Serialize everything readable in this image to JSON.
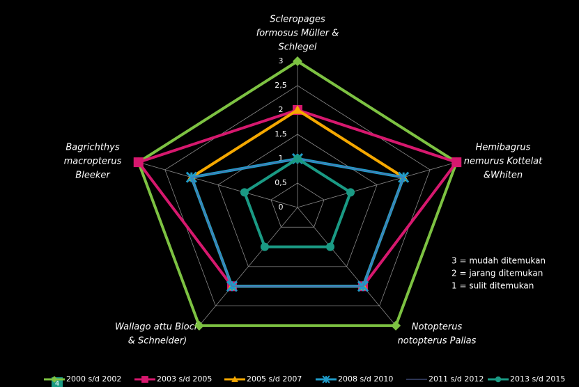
{
  "chart_data": {
    "type": "radar",
    "categories": [
      [
        "Scleropages",
        "formosus Müller &",
        "Schlegel"
      ],
      [
        "Hemibagrus",
        "nemurus Kottelat",
        "&Whiten"
      ],
      [
        "Notopterus",
        "notopterus Pallas"
      ],
      [
        "Wallago attu Bloch",
        "& Schneider)"
      ],
      [
        "Bagrichthys",
        "macropterus",
        "Bleeker"
      ]
    ],
    "series": [
      {
        "name": "2000 s/d 2002",
        "color": "#7dc242",
        "marker": "diamond",
        "values": [
          3,
          3,
          3,
          3,
          3
        ]
      },
      {
        "name": "2003 s/d 2005",
        "color": "#d6186e",
        "marker": "square",
        "values": [
          2,
          3,
          2,
          2,
          3
        ]
      },
      {
        "name": "2005 s/d 2007",
        "color": "#f5a800",
        "marker": "triangle",
        "values": [
          2,
          2,
          2,
          2,
          2
        ]
      },
      {
        "name": "2008 s/d 2010",
        "color": "#1f9bc9",
        "marker": "x",
        "values": [
          1,
          2,
          2,
          2,
          2
        ]
      },
      {
        "name": "2011 s/d 2012",
        "color": "#5a6aa8",
        "marker": "none",
        "values": [
          1,
          2,
          2,
          2,
          2
        ]
      },
      {
        "name": "2013 s/d 2015",
        "color": "#1a9a84",
        "marker": "circle",
        "values": [
          1,
          1,
          1,
          1,
          1
        ]
      }
    ],
    "rlim": [
      0,
      3
    ],
    "rticks": [
      0,
      {
        "value": 0.5,
        "label": "0,5"
      },
      1,
      {
        "value": 1.5,
        "label": "1,5"
      },
      2,
      {
        "value": 2.5,
        "label": "2,5"
      },
      3
    ],
    "grid": true,
    "annotations": [
      "3 = mudah ditemukan",
      "2 = jarang ditemukan",
      "1 = sulit ditemukan"
    ],
    "page_number": "4"
  }
}
